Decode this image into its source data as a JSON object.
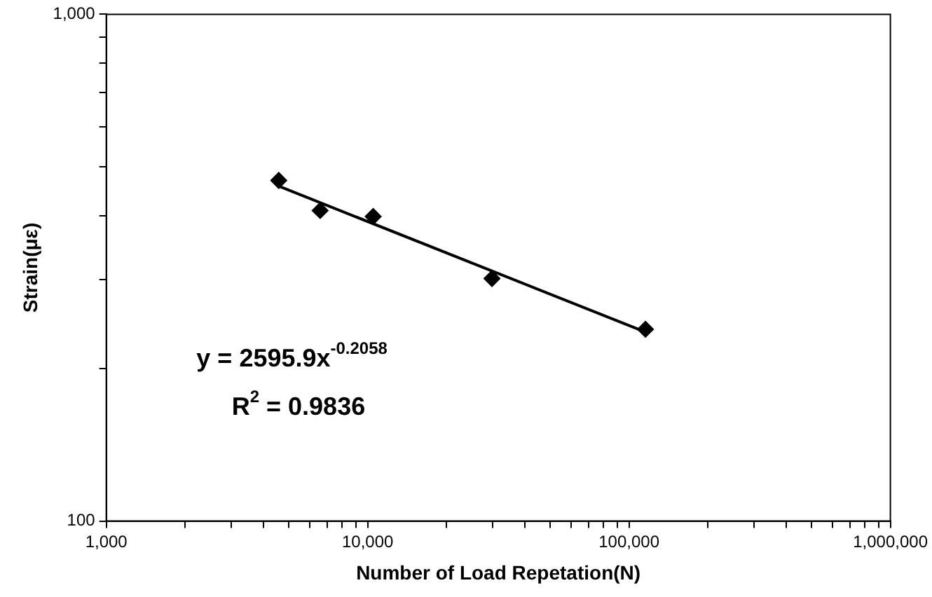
{
  "chart_data": {
    "type": "scatter",
    "xlabel": "Number of Load Repetation(N)",
    "ylabel": "Strain(με)",
    "log": "xy",
    "marker": "diamond",
    "grid": false,
    "legend": false,
    "xlim": [
      1000,
      1000000
    ],
    "ylim": [
      100,
      1000
    ],
    "xticks": [
      {
        "value": 1000,
        "label": "1,000"
      },
      {
        "value": 2000,
        "label": null
      },
      {
        "value": 3000,
        "label": null
      },
      {
        "value": 4000,
        "label": null
      },
      {
        "value": 5000,
        "label": null
      },
      {
        "value": 6000,
        "label": null
      },
      {
        "value": 7000,
        "label": null
      },
      {
        "value": 8000,
        "label": null
      },
      {
        "value": 9000,
        "label": null
      },
      {
        "value": 10000,
        "label": "10,000"
      },
      {
        "value": 20000,
        "label": null
      },
      {
        "value": 30000,
        "label": null
      },
      {
        "value": 40000,
        "label": null
      },
      {
        "value": 50000,
        "label": null
      },
      {
        "value": 60000,
        "label": null
      },
      {
        "value": 70000,
        "label": null
      },
      {
        "value": 80000,
        "label": null
      },
      {
        "value": 90000,
        "label": null
      },
      {
        "value": 100000,
        "label": "100,000"
      },
      {
        "value": 200000,
        "label": null
      },
      {
        "value": 300000,
        "label": null
      },
      {
        "value": 400000,
        "label": null
      },
      {
        "value": 500000,
        "label": null
      },
      {
        "value": 600000,
        "label": null
      },
      {
        "value": 700000,
        "label": null
      },
      {
        "value": 800000,
        "label": null
      },
      {
        "value": 900000,
        "label": null
      },
      {
        "value": 1000000,
        "label": "1,000,000"
      }
    ],
    "yticks": [
      100,
      {
        "value": 200,
        "label": null
      },
      {
        "value": 300,
        "label": null
      },
      {
        "value": 400,
        "label": null
      },
      {
        "value": 500,
        "label": null
      },
      {
        "value": 600,
        "label": null
      },
      {
        "value": 700,
        "label": null
      },
      {
        "value": 800,
        "label": null
      },
      {
        "value": 900,
        "label": null
      },
      {
        "value": 1000,
        "label": "1,000"
      }
    ],
    "series": [
      {
        "color": "#000000",
        "x": [
          4570,
          6580,
          10500,
          29900,
          115600
        ],
        "values": [
          470,
          410,
          399,
          301,
          239
        ]
      },
      {
        "type": "line",
        "color": "#000000",
        "marker": "none",
        "line_style": "solid",
        "x": [
          4570,
          115600
        ],
        "values": [
          458,
          236
        ]
      }
    ],
    "annotations": [
      "y = 2595.9x$^{-0.2058}$",
      "R$^{2}$ = 0.9836"
    ]
  }
}
